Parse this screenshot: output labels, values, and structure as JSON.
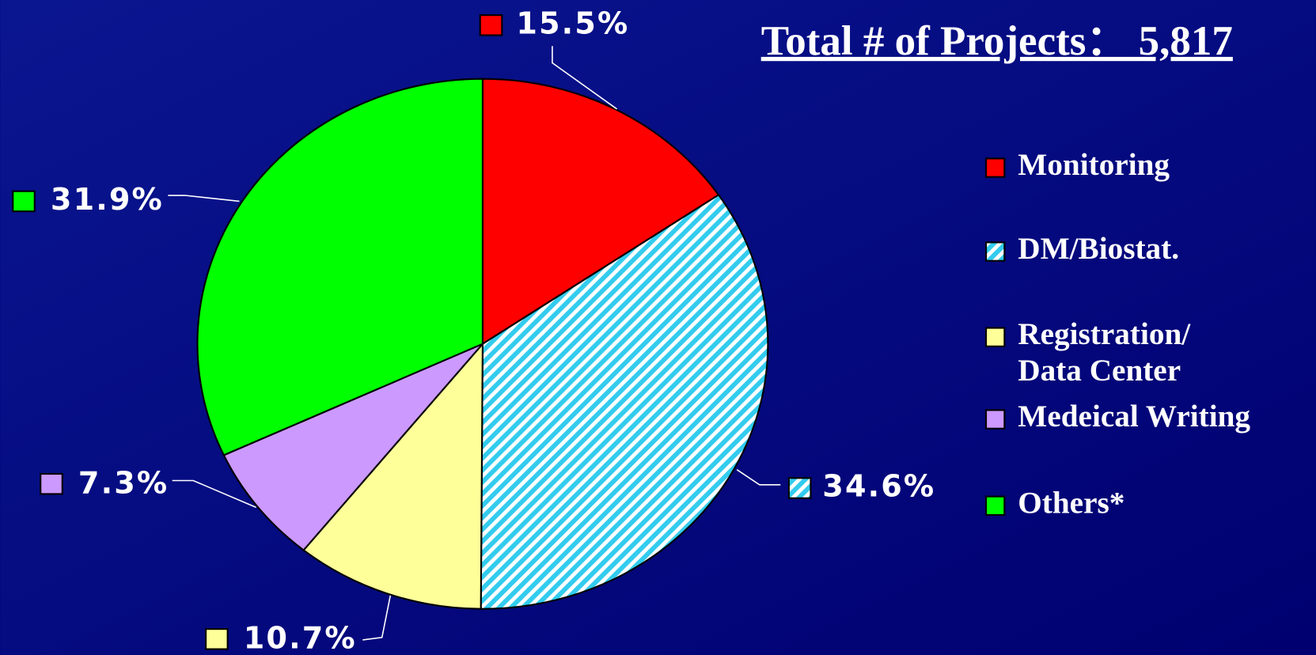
{
  "chart_data": {
    "type": "pie",
    "title": "Total # of Projects： 5,817",
    "categories": [
      "Monitoring",
      "DM/Biostat.",
      "Registration/\nData Center",
      "Medeical Writing",
      "Others*"
    ],
    "values": [
      15.5,
      34.6,
      10.7,
      7.3,
      31.9
    ],
    "value_labels": [
      "15.5%",
      "34.6%",
      "10.7%",
      "7.3%",
      "31.9%"
    ],
    "colors": [
      "#ff0000",
      "#33ccee",
      "#ffff99",
      "#cc99ff",
      "#00ff00"
    ],
    "hatch": [
      false,
      true,
      false,
      false,
      false
    ],
    "legend": "right"
  }
}
